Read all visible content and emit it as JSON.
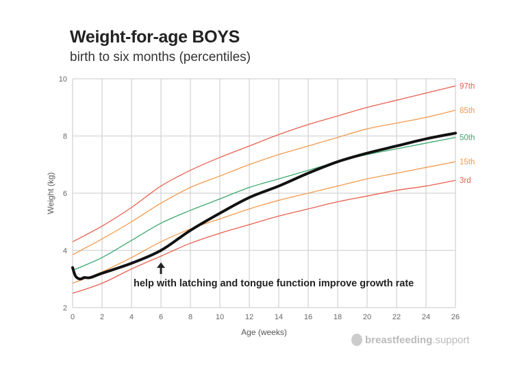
{
  "chart_data": {
    "type": "line",
    "title": "Weight-for-age BOYS",
    "subtitle": "birth to six months (percentiles)",
    "xlabel": "Age (weeks)",
    "ylabel": "Weight (kg)",
    "xlim": [
      0,
      26
    ],
    "ylim": [
      2,
      10
    ],
    "xticks": [
      0,
      2,
      4,
      6,
      8,
      10,
      12,
      14,
      16,
      18,
      20,
      22,
      24,
      26
    ],
    "yticks": [
      2,
      4,
      6,
      8,
      10
    ],
    "grid": true,
    "x": [
      0,
      2,
      4,
      6,
      8,
      10,
      12,
      14,
      16,
      18,
      20,
      22,
      24,
      26
    ],
    "series": [
      {
        "name": "97th",
        "color": "#e8604f",
        "values": [
          4.3,
          4.85,
          5.5,
          6.25,
          6.8,
          7.25,
          7.65,
          8.05,
          8.4,
          8.7,
          9.0,
          9.25,
          9.5,
          9.75
        ]
      },
      {
        "name": "85th",
        "color": "#f39a4c",
        "values": [
          3.85,
          4.4,
          5.0,
          5.65,
          6.2,
          6.6,
          7.0,
          7.35,
          7.65,
          7.95,
          8.25,
          8.45,
          8.65,
          8.9
        ]
      },
      {
        "name": "50th",
        "color": "#3aa76d",
        "values": [
          3.3,
          3.75,
          4.35,
          4.95,
          5.4,
          5.8,
          6.2,
          6.5,
          6.8,
          7.1,
          7.35,
          7.55,
          7.75,
          7.95
        ]
      },
      {
        "name": "15th",
        "color": "#f39a4c",
        "values": [
          2.85,
          3.25,
          3.75,
          4.3,
          4.75,
          5.1,
          5.45,
          5.75,
          6.0,
          6.25,
          6.5,
          6.7,
          6.9,
          7.1
        ]
      },
      {
        "name": "3rd",
        "color": "#e8604f",
        "values": [
          2.5,
          2.85,
          3.35,
          3.8,
          4.25,
          4.6,
          4.9,
          5.2,
          5.45,
          5.7,
          5.9,
          6.1,
          6.25,
          6.45
        ]
      }
    ],
    "baby": {
      "color": "#111111",
      "x": [
        0,
        0.2,
        0.5,
        0.8,
        1.2,
        2,
        4,
        6,
        8,
        10,
        12,
        14,
        16,
        18,
        20,
        22,
        24,
        26
      ],
      "values": [
        3.4,
        3.1,
        3.0,
        3.05,
        3.05,
        3.2,
        3.55,
        4.0,
        4.7,
        5.3,
        5.85,
        6.25,
        6.7,
        7.1,
        7.4,
        7.65,
        7.9,
        8.1
      ]
    },
    "annotation": {
      "text": "help with latching and tongue function improve growth rate",
      "arrow_at_week": 6
    }
  },
  "logo": {
    "bold": "breastfeeding",
    "light": ".support"
  }
}
